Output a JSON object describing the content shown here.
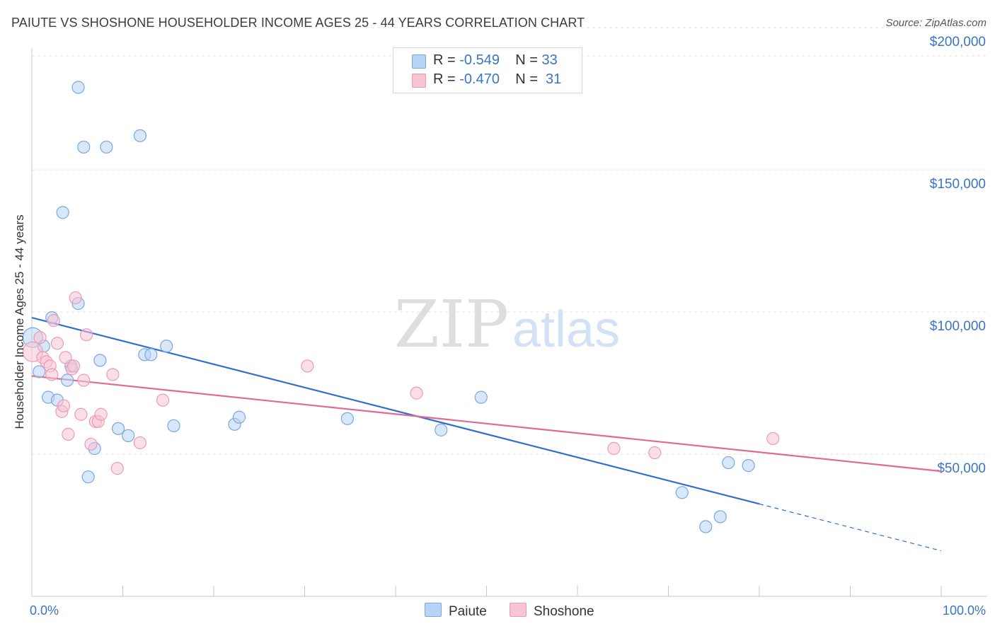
{
  "title": "PAIUTE VS SHOSHONE HOUSEHOLDER INCOME AGES 25 - 44 YEARS CORRELATION CHART",
  "source": "Source: ZipAtlas.com",
  "watermark": {
    "zip": "ZIP",
    "atlas": "atlas"
  },
  "legend": {
    "paiute": {
      "r_label": "R =",
      "r_value": "-0.549",
      "n_label": "N =",
      "n_value": "33"
    },
    "shoshone": {
      "r_label": "R =",
      "r_value": "-0.470",
      "n_label": "N =",
      "n_value": "31"
    }
  },
  "bottom_legend": {
    "paiute": "Paiute",
    "shoshone": "Shoshone"
  },
  "colors": {
    "paiute_fill": "#b8d3f5",
    "paiute_stroke": "#7aa8e0",
    "paiute_line": "#2f6fd1",
    "shoshone_fill": "#f8c5d5",
    "shoshone_stroke": "#ee9ab5",
    "shoshone_line": "#e06a93",
    "grid": "#e3e3e3",
    "axis": "#c7c7c7",
    "tick_text": "#3b74c4"
  },
  "chart_data": {
    "type": "scatter",
    "title": "PAIUTE VS SHOSHONE HOUSEHOLDER INCOME AGES 25 - 44 YEARS CORRELATION CHART",
    "xlabel": "",
    "ylabel": "Householder Income Ages 25 - 44 years",
    "xlim": [
      0,
      100
    ],
    "ylim": [
      0,
      205000
    ],
    "x_tick_labels": [
      "0.0%",
      "100.0%"
    ],
    "y_ticks": [
      {
        "value": 50000,
        "label": "$50,000"
      },
      {
        "value": 100000,
        "label": "$100,000"
      },
      {
        "value": 150000,
        "label": "$150,000"
      },
      {
        "value": 200000,
        "label": "$200,000"
      }
    ],
    "grid": true,
    "series": [
      {
        "name": "Paiute",
        "points": [
          {
            "x": 0.1,
            "y": 91000,
            "big": true
          },
          {
            "x": 0.8,
            "y": 79000
          },
          {
            "x": 1.3,
            "y": 88000
          },
          {
            "x": 1.8,
            "y": 70000
          },
          {
            "x": 2.2,
            "y": 98000
          },
          {
            "x": 2.8,
            "y": 69000
          },
          {
            "x": 3.4,
            "y": 135000
          },
          {
            "x": 3.9,
            "y": 76000
          },
          {
            "x": 4.3,
            "y": 81000
          },
          {
            "x": 5.1,
            "y": 179000
          },
          {
            "x": 5.1,
            "y": 103000
          },
          {
            "x": 5.7,
            "y": 158000
          },
          {
            "x": 6.2,
            "y": 42000
          },
          {
            "x": 6.9,
            "y": 52000
          },
          {
            "x": 7.5,
            "y": 83000
          },
          {
            "x": 8.2,
            "y": 158000
          },
          {
            "x": 9.5,
            "y": 59000
          },
          {
            "x": 10.6,
            "y": 56500
          },
          {
            "x": 11.9,
            "y": 162000
          },
          {
            "x": 12.4,
            "y": 85000
          },
          {
            "x": 13.1,
            "y": 85000
          },
          {
            "x": 14.8,
            "y": 88000
          },
          {
            "x": 15.6,
            "y": 60000
          },
          {
            "x": 22.3,
            "y": 60500
          },
          {
            "x": 22.8,
            "y": 63000
          },
          {
            "x": 34.7,
            "y": 62500
          },
          {
            "x": 45.0,
            "y": 58500
          },
          {
            "x": 49.4,
            "y": 70000
          },
          {
            "x": 71.5,
            "y": 36500
          },
          {
            "x": 74.1,
            "y": 24500
          },
          {
            "x": 75.7,
            "y": 28000
          },
          {
            "x": 76.6,
            "y": 47000
          },
          {
            "x": 78.8,
            "y": 46000
          }
        ],
        "trend": {
          "x": [
            0,
            80
          ],
          "y": [
            98000,
            32500
          ]
        },
        "trend_dashed": {
          "x": [
            80,
            100
          ],
          "y": [
            32500,
            16000
          ]
        }
      },
      {
        "name": "Shoshone",
        "points": [
          {
            "x": 0.1,
            "y": 86000,
            "big": true
          },
          {
            "x": 0.9,
            "y": 91000
          },
          {
            "x": 1.2,
            "y": 84000
          },
          {
            "x": 1.6,
            "y": 82500
          },
          {
            "x": 2.0,
            "y": 81000
          },
          {
            "x": 2.2,
            "y": 78000
          },
          {
            "x": 2.4,
            "y": 97000
          },
          {
            "x": 2.8,
            "y": 89000
          },
          {
            "x": 3.3,
            "y": 65000
          },
          {
            "x": 3.5,
            "y": 67000
          },
          {
            "x": 3.7,
            "y": 84000
          },
          {
            "x": 4.0,
            "y": 57000
          },
          {
            "x": 4.4,
            "y": 80000
          },
          {
            "x": 4.6,
            "y": 81000
          },
          {
            "x": 4.8,
            "y": 105000
          },
          {
            "x": 5.4,
            "y": 64000
          },
          {
            "x": 5.7,
            "y": 76000
          },
          {
            "x": 6.0,
            "y": 92000
          },
          {
            "x": 6.5,
            "y": 53500
          },
          {
            "x": 7.0,
            "y": 61500
          },
          {
            "x": 7.3,
            "y": 61500
          },
          {
            "x": 7.6,
            "y": 64000
          },
          {
            "x": 8.9,
            "y": 78000
          },
          {
            "x": 9.4,
            "y": 45000
          },
          {
            "x": 11.9,
            "y": 54000
          },
          {
            "x": 14.4,
            "y": 69000
          },
          {
            "x": 30.3,
            "y": 81000
          },
          {
            "x": 42.3,
            "y": 71500
          },
          {
            "x": 64.0,
            "y": 52000
          },
          {
            "x": 68.5,
            "y": 50500
          },
          {
            "x": 81.5,
            "y": 55500
          }
        ],
        "trend": {
          "x": [
            0,
            100
          ],
          "y": [
            77500,
            44000
          ]
        }
      }
    ]
  }
}
